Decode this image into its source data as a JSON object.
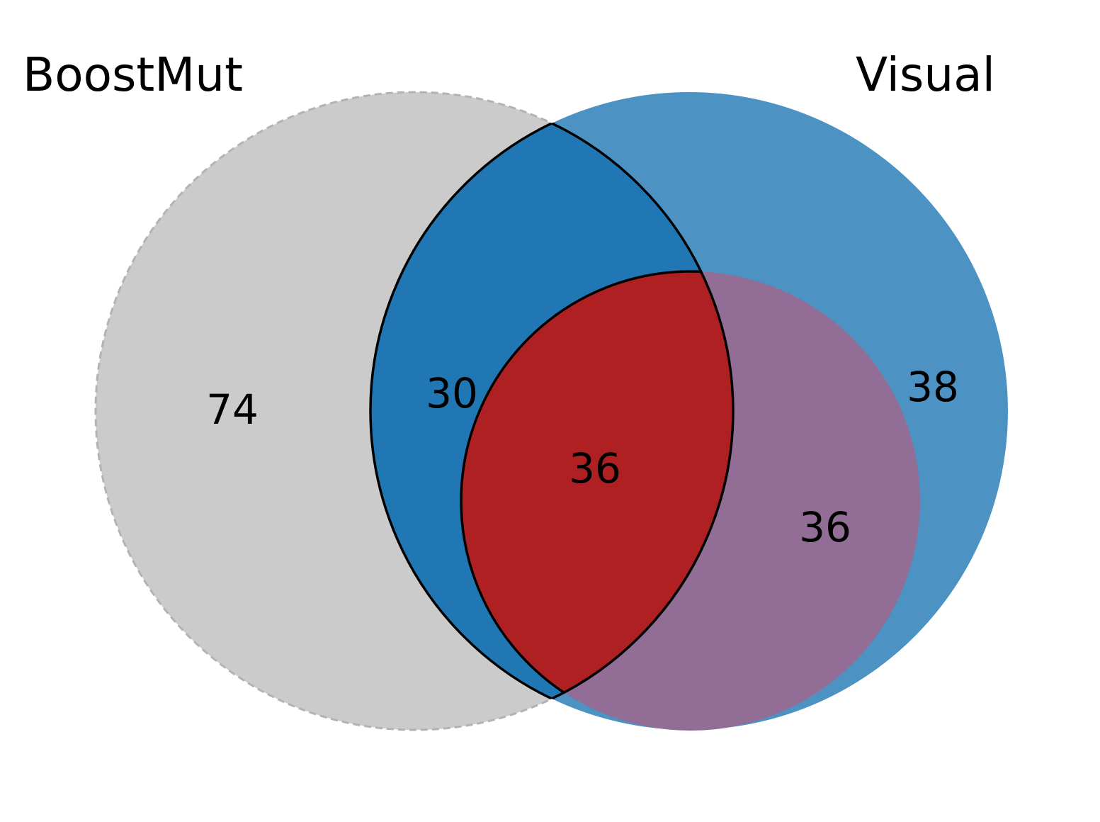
{
  "sets": {
    "left": {
      "label": "BoostMut"
    },
    "right": {
      "label": "Visual"
    }
  },
  "regions": {
    "boostmut_only": "74",
    "boostmut_visual_outer": "30",
    "visual_only": "38",
    "all_three": "36",
    "inner_visual_only": "36"
  },
  "colors": {
    "boostmut_fill": "#cbcbcb",
    "boostmut_stroke": "#b3b3b3",
    "visual_fill": "#4c92c3",
    "overlap_fill": "#2077b4",
    "inner_fill": "#926d95",
    "core_fill": "#af2022",
    "outline": "#000000"
  }
}
